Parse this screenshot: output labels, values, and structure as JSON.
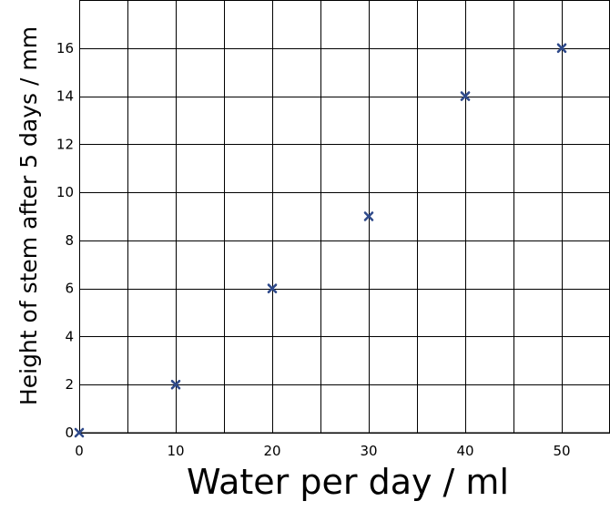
{
  "chart_data": {
    "type": "scatter",
    "title": "",
    "xlabel": "Water per day / ml",
    "ylabel": "Height of stem after 5 days / mm",
    "xlim": [
      0,
      55
    ],
    "ylim": [
      0,
      18
    ],
    "grid": true,
    "x_ticks": [
      "0",
      "10",
      "20",
      "30",
      "40",
      "50"
    ],
    "y_ticks": [
      "0",
      "2",
      "4",
      "6",
      "8",
      "10",
      "12",
      "14",
      "16"
    ],
    "marker": "x",
    "marker_color": "#2f4a8a",
    "series": [
      {
        "x": [
          0,
          10,
          20,
          30,
          40,
          50
        ],
        "y": [
          0,
          2,
          6,
          9,
          14,
          16
        ]
      }
    ]
  }
}
